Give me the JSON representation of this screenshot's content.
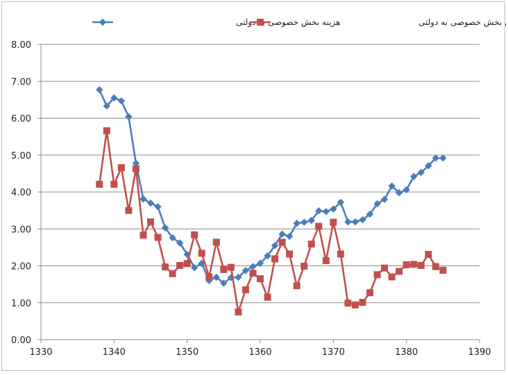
{
  "chart_data": {
    "type": "line",
    "title": "",
    "xlabel": "",
    "ylabel": "",
    "xlim": [
      1330,
      1390
    ],
    "ylim": [
      0,
      8
    ],
    "x_ticks": [
      1330,
      1340,
      1350,
      1360,
      1370,
      1380,
      1390
    ],
    "y_ticks": [
      0,
      1,
      2,
      3,
      4,
      5,
      6,
      7,
      8
    ],
    "y_tick_labels": [
      "0.00",
      "1.00",
      "2.00",
      "3.00",
      "4.00",
      "5.00",
      "6.00",
      "7.00",
      "8.00"
    ],
    "grid": "horizontal",
    "legend_position": "top",
    "series": [
      {
        "name": "هزینه بخش خصوصی به دولتی",
        "color": "#4a7ebb",
        "marker": "diamond",
        "x": [
          1338,
          1339,
          1340,
          1341,
          1342,
          1343,
          1344,
          1345,
          1346,
          1347,
          1348,
          1349,
          1350,
          1351,
          1352,
          1353,
          1354,
          1355,
          1356,
          1357,
          1358,
          1359,
          1360,
          1361,
          1362,
          1363,
          1364,
          1365,
          1366,
          1367,
          1368,
          1369,
          1370,
          1371,
          1372,
          1373,
          1374,
          1375,
          1376,
          1377,
          1378,
          1379,
          1380,
          1381,
          1382,
          1383,
          1384,
          1385
        ],
        "values": [
          6.77,
          6.33,
          6.55,
          6.47,
          6.04,
          4.78,
          3.81,
          3.7,
          3.6,
          3.03,
          2.76,
          2.62,
          2.31,
          1.95,
          2.07,
          1.6,
          1.69,
          1.53,
          1.68,
          1.69,
          1.87,
          1.98,
          2.07,
          2.27,
          2.55,
          2.86,
          2.8,
          3.15,
          3.18,
          3.23,
          3.49,
          3.47,
          3.54,
          3.72,
          3.19,
          3.19,
          3.25,
          3.4,
          3.68,
          3.8,
          4.16,
          3.98,
          4.06,
          4.42,
          4.53,
          4.71,
          4.92,
          4.92
        ]
      },
      {
        "name": "سرمایه گذاری بخش خصوصی به دولتی",
        "color": "#c0504d",
        "marker": "square",
        "x": [
          1338,
          1339,
          1340,
          1341,
          1342,
          1343,
          1344,
          1345,
          1346,
          1347,
          1348,
          1349,
          1350,
          1351,
          1352,
          1353,
          1354,
          1355,
          1356,
          1357,
          1358,
          1359,
          1360,
          1361,
          1362,
          1363,
          1364,
          1365,
          1366,
          1367,
          1368,
          1369,
          1370,
          1371,
          1372,
          1373,
          1374,
          1375,
          1376,
          1377,
          1378,
          1379,
          1380,
          1381,
          1382,
          1383,
          1384,
          1385
        ],
        "values": [
          4.21,
          5.66,
          4.21,
          4.66,
          3.5,
          4.63,
          2.83,
          3.19,
          2.77,
          1.97,
          1.79,
          2.01,
          2.06,
          2.84,
          2.34,
          1.7,
          2.64,
          1.9,
          1.96,
          0.75,
          1.35,
          1.8,
          1.65,
          1.15,
          2.19,
          2.64,
          2.32,
          1.46,
          1.99,
          2.59,
          3.07,
          2.14,
          3.18,
          2.32,
          0.99,
          0.94,
          1.01,
          1.27,
          1.76,
          1.94,
          1.7,
          1.85,
          2.03,
          2.04,
          2.01,
          2.31,
          1.98,
          1.88
        ]
      }
    ]
  }
}
